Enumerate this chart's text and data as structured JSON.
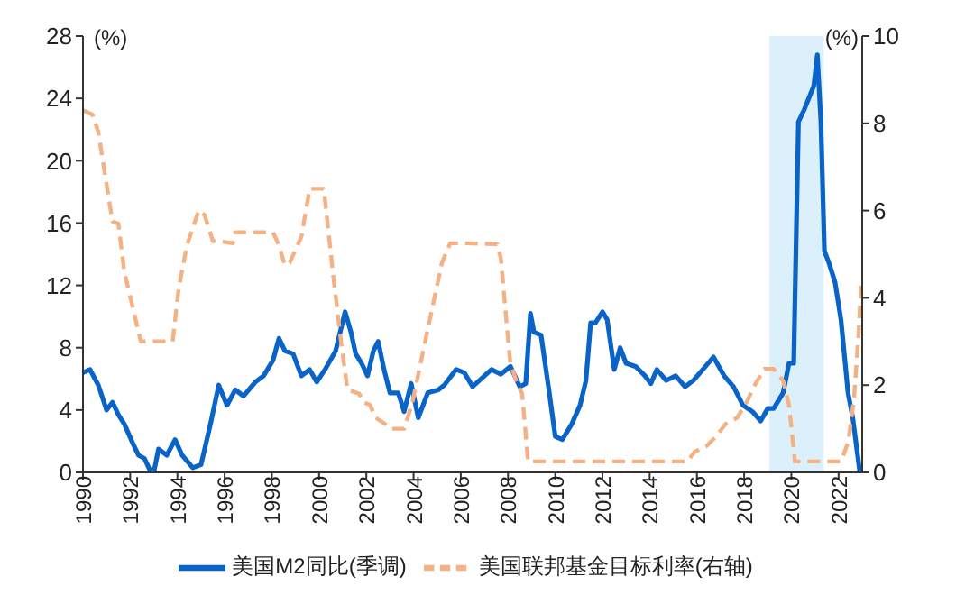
{
  "chart_data": {
    "type": "line",
    "annotations": [
      "(%)",
      "(%)"
    ],
    "xlim": [
      1990,
      2023
    ],
    "xticks": [
      {
        "value": 1990,
        "label": "1990"
      },
      {
        "value": 1992,
        "label": "1992"
      },
      {
        "value": 1994,
        "label": "1994"
      },
      {
        "value": 1996,
        "label": "1996"
      },
      {
        "value": 1998,
        "label": "1998"
      },
      {
        "value": 2000,
        "label": "2000"
      },
      {
        "value": 2002,
        "label": "2002"
      },
      {
        "value": 2004,
        "label": "2004"
      },
      {
        "value": 2006,
        "label": "2006"
      },
      {
        "value": 2008,
        "label": "2008"
      },
      {
        "value": 2010,
        "label": "2010"
      },
      {
        "value": 2012,
        "label": "2012"
      },
      {
        "value": 2014,
        "label": "2014"
      },
      {
        "value": 2016,
        "label": "2016"
      },
      {
        "value": 2018,
        "label": "2018"
      },
      {
        "value": 2020,
        "label": "2020"
      },
      {
        "value": 2022,
        "label": "2022"
      }
    ],
    "ylim": [
      0,
      28
    ],
    "yticks": [
      0,
      4,
      8,
      12,
      16,
      20,
      24,
      28
    ],
    "y2lim": [
      0,
      10
    ],
    "y2ticks": [
      0,
      2,
      4,
      6,
      8,
      10
    ],
    "bands": [
      {
        "axis": "x",
        "from": 2019.07,
        "to": 2021.37,
        "color": "#dcf0fb"
      }
    ],
    "legend": "bottom",
    "marker": "none",
    "series": [
      {
        "name": "美国M2同比(季调)",
        "color": "#0a64c8",
        "line_style": "solid",
        "x": [
          1990,
          1990.3,
          1990.65,
          1991,
          1991.25,
          1991.5,
          1991.75,
          1992.1,
          1992.35,
          1992.6,
          1992.85,
          1993,
          1993.2,
          1993.55,
          1993.9,
          1994.2,
          1994.65,
          1995,
          1995.4,
          1995.75,
          1996.1,
          1996.45,
          1996.8,
          1997.3,
          1997.65,
          1998.05,
          1998.3,
          1998.55,
          1998.9,
          1999.25,
          1999.6,
          1999.9,
          2000.25,
          2000.7,
          2001.1,
          2001.35,
          2001.55,
          2001.8,
          2002.05,
          2002.3,
          2002.5,
          2002.75,
          2003,
          2003.35,
          2003.6,
          2003.9,
          2004.2,
          2004.6,
          2005.05,
          2005.3,
          2005.8,
          2006.15,
          2006.5,
          2007.3,
          2007.7,
          2008.1,
          2008.5,
          2008.75,
          2008.95,
          2009.1,
          2009.4,
          2009.75,
          2010,
          2010.3,
          2010.7,
          2011.05,
          2011.3,
          2011.5,
          2011.7,
          2012,
          2012.2,
          2012.5,
          2012.75,
          2013,
          2013.4,
          2013.8,
          2014.05,
          2014.3,
          2014.7,
          2015.1,
          2015.5,
          2015.85,
          2016.25,
          2016.7,
          2017.15,
          2017.55,
          2017.95,
          2018.35,
          2018.7,
          2019,
          2019.25,
          2019.65,
          2019.9,
          2020.1,
          2020.3,
          2020.55,
          2020.95,
          2021.1,
          2021.25,
          2021.4,
          2021.6,
          2021.85,
          2022.1,
          2022.4,
          2022.6,
          2022.9
        ],
        "values": [
          6.4,
          6.6,
          5.6,
          4.0,
          4.5,
          3.7,
          3.1,
          1.9,
          1.1,
          0.9,
          0.1,
          0,
          1.5,
          1.1,
          2.1,
          1.1,
          0.3,
          0.5,
          3.1,
          5.6,
          4.3,
          5.3,
          4.9,
          5.8,
          6.2,
          7.2,
          8.6,
          7.8,
          7.6,
          6.2,
          6.6,
          5.8,
          6.6,
          7.8,
          10.3,
          9.0,
          7.6,
          7.0,
          6.2,
          7.8,
          8.4,
          6.6,
          5.1,
          5.1,
          3.9,
          5.7,
          3.5,
          5.1,
          5.3,
          5.6,
          6.6,
          6.4,
          5.5,
          6.6,
          6.3,
          6.8,
          5.5,
          5.7,
          10.2,
          9.0,
          8.8,
          5.1,
          2.3,
          2.1,
          3.1,
          4.3,
          5.9,
          9.6,
          9.6,
          10.3,
          9.8,
          6.6,
          8.0,
          7.0,
          6.8,
          6.2,
          5.7,
          6.6,
          5.9,
          6.2,
          5.5,
          5.9,
          6.6,
          7.4,
          6.2,
          5.5,
          4.3,
          3.9,
          3.3,
          4.1,
          4.1,
          5.1,
          7.0,
          7.0,
          22.5,
          23.3,
          24.8,
          26.8,
          22.5,
          14.2,
          13.4,
          12.2,
          9.8,
          5.1,
          3.5,
          0
        ]
      },
      {
        "name": "美国联邦基金目标利率(右轴)",
        "color": "#f4b183",
        "line_style": "dashed",
        "axis": "y2",
        "x": [
          1990,
          1990.4,
          1990.65,
          1991,
          1991.25,
          1991.5,
          1991.75,
          1992.1,
          1992.45,
          1993.8,
          1994.05,
          1994.4,
          1994.9,
          1995.15,
          1995.5,
          1995.75,
          1996.35,
          1996.45,
          1998.05,
          1998.3,
          1998.55,
          1998.75,
          1999.25,
          1999.6,
          2000.2,
          2000.6,
          2000.95,
          2001.2,
          2001.7,
          2001.9,
          2002.15,
          2002.4,
          2003.1,
          2003.6,
          2003.95,
          2004.55,
          2005.2,
          2005.55,
          2006.3,
          2007.55,
          2007.7,
          2007.95,
          2008.1,
          2008.35,
          2008.6,
          2008.85,
          2015.6,
          2015.9,
          2016.4,
          2016.8,
          2017.2,
          2017.7,
          2018.1,
          2018.45,
          2018.85,
          2019.25,
          2019.65,
          2019.9,
          2020.15,
          2022.1,
          2022.4,
          2022.65,
          2022.85,
          2022.95
        ],
        "values": [
          8.3,
          8.2,
          7.8,
          6.6,
          5.75,
          5.7,
          4.6,
          3.8,
          3.0,
          3.0,
          4.2,
          5.2,
          6.0,
          5.9,
          5.3,
          5.3,
          5.25,
          5.5,
          5.5,
          5.2,
          4.75,
          4.8,
          5.4,
          6.5,
          6.5,
          4.5,
          2.9,
          1.9,
          1.8,
          1.6,
          1.55,
          1.25,
          1.0,
          1.0,
          1.6,
          3.15,
          4.8,
          5.25,
          5.25,
          5.23,
          4.9,
          3.36,
          2.5,
          2.1,
          1.8,
          0.25,
          0.25,
          0.47,
          0.6,
          0.82,
          1.1,
          1.25,
          1.6,
          2.0,
          2.37,
          2.37,
          2.1,
          1.55,
          0.25,
          0.25,
          0.68,
          1.67,
          3.2,
          4.28
        ]
      }
    ]
  }
}
